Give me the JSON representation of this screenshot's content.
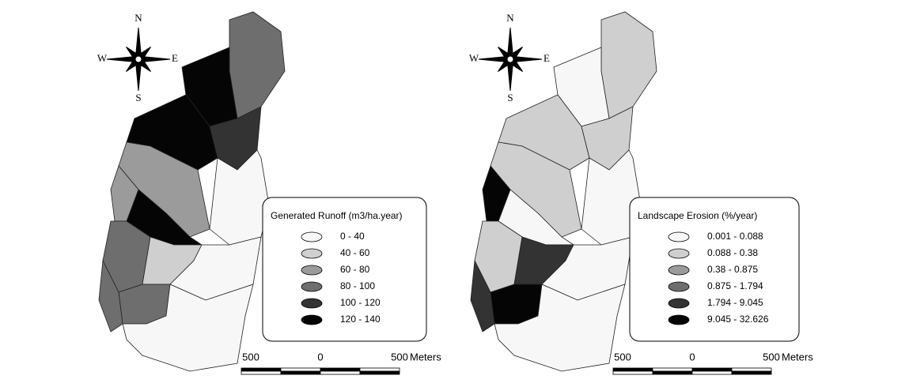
{
  "maps": [
    {
      "compass": {
        "north": "N",
        "east": "E",
        "south": "S",
        "west": "W"
      },
      "legend": {
        "title": "Generated Runoff (m3/ha.year)",
        "items": [
          {
            "label": "0 - 40",
            "color": "#f7f7f7"
          },
          {
            "label": "40 - 60",
            "color": "#cfcfcf"
          },
          {
            "label": "60 - 80",
            "color": "#9b9b9b"
          },
          {
            "label": "80 - 100",
            "color": "#6e6e6e"
          },
          {
            "label": "100 - 120",
            "color": "#333333"
          },
          {
            "label": "120 - 140",
            "color": "#050505"
          }
        ]
      },
      "scale": {
        "labels": [
          "500",
          "0",
          "500"
        ],
        "unit": "Meters"
      }
    },
    {
      "compass": {
        "north": "N",
        "east": "E",
        "south": "S",
        "west": "W"
      },
      "legend": {
        "title": "Landscape Erosion (%/year)",
        "items": [
          {
            "label": "0.001 - 0.088",
            "color": "#f7f7f7"
          },
          {
            "label": "0.088 - 0.38",
            "color": "#cfcfcf"
          },
          {
            "label": "0.38 - 0.875",
            "color": "#9b9b9b"
          },
          {
            "label": "0.875 - 1.794",
            "color": "#6e6e6e"
          },
          {
            "label": "1.794 - 9.045",
            "color": "#333333"
          },
          {
            "label": "9.045 - 32.626",
            "color": "#050505"
          }
        ]
      },
      "scale": {
        "labels": [
          "500",
          "0",
          "500"
        ],
        "unit": "Meters"
      }
    }
  ]
}
